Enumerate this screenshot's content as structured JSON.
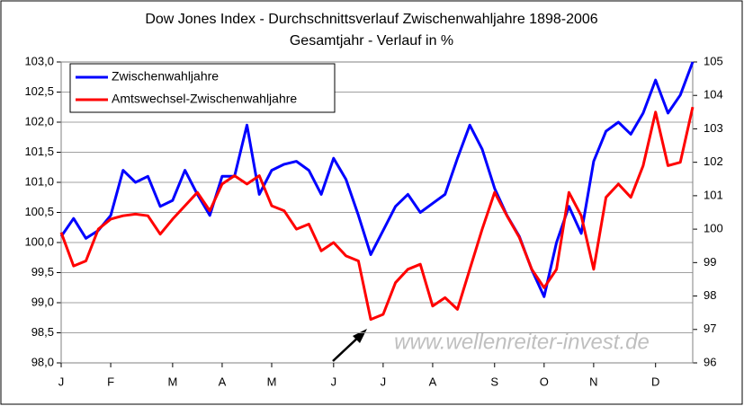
{
  "chart_data": {
    "type": "line",
    "title": "Dow Jones Index - Durchschnittsverlauf Zwischenwahljahre 1898-2006",
    "subtitle": "Gesamtjahr - Verlauf in %",
    "annotation": "www.wellenreiter-invest.de",
    "categories": [
      "J",
      null,
      null,
      null,
      "F",
      null,
      null,
      null,
      null,
      "M",
      null,
      null,
      null,
      "A",
      null,
      null,
      null,
      "M",
      null,
      null,
      null,
      null,
      "J",
      null,
      null,
      null,
      "J",
      null,
      null,
      null,
      "A",
      null,
      null,
      null,
      null,
      "S",
      null,
      null,
      null,
      "O",
      null,
      null,
      null,
      "N",
      null,
      null,
      null,
      null,
      "D",
      null,
      null,
      null
    ],
    "series": [
      {
        "name": "Zwischenwahljahre",
        "color": "#0000ff",
        "values": [
          100.1,
          100.4,
          100.07,
          100.2,
          100.45,
          101.2,
          101.0,
          101.1,
          100.6,
          100.7,
          101.2,
          100.8,
          100.45,
          101.1,
          101.1,
          101.95,
          100.8,
          101.2,
          101.3,
          101.35,
          101.2,
          100.8,
          101.4,
          101.05,
          100.45,
          99.8,
          100.2,
          100.6,
          100.8,
          100.5,
          100.65,
          100.8,
          101.4,
          101.95,
          101.55,
          100.9,
          100.45,
          100.1,
          99.55,
          99.1,
          100.0,
          100.6,
          100.15,
          101.35,
          101.85,
          102.0,
          101.8,
          102.15,
          102.7,
          102.15,
          102.45,
          103.0
        ]
      },
      {
        "name": "Amtswechsel-Zwischenwahljahre",
        "color": "#ff0000",
        "axis": "y2",
        "values": [
          99.9,
          98.9,
          99.05,
          100.0,
          100.3,
          100.4,
          100.45,
          100.4,
          99.85,
          100.3,
          100.7,
          101.1,
          100.55,
          101.35,
          101.6,
          101.35,
          101.6,
          100.7,
          100.55,
          100.0,
          100.15,
          99.35,
          99.6,
          99.2,
          99.05,
          97.3,
          97.45,
          98.4,
          98.8,
          98.95,
          97.7,
          97.95,
          97.6,
          98.8,
          100.0,
          101.1,
          100.4,
          99.75,
          98.8,
          98.25,
          98.8,
          101.1,
          100.4,
          98.8,
          100.95,
          101.35,
          100.95,
          101.9,
          103.5,
          101.9,
          102.0,
          103.65
        ]
      }
    ],
    "ylim": [
      98,
      103
    ],
    "yticks": [
      {
        "value": 98,
        "label": "98,0"
      },
      {
        "value": 98.5,
        "label": "98,5"
      },
      {
        "value": 99,
        "label": "99,0"
      },
      {
        "value": 99.5,
        "label": "99,5"
      },
      {
        "value": 100,
        "label": "100,0"
      },
      {
        "value": 100.5,
        "label": "100,5"
      },
      {
        "value": 101,
        "label": "101,0"
      },
      {
        "value": 101.5,
        "label": "101,5"
      },
      {
        "value": 102,
        "label": "102,0"
      },
      {
        "value": 102.5,
        "label": "102,5"
      },
      {
        "value": 103,
        "label": "103,0"
      }
    ],
    "y2lim": [
      96,
      105
    ],
    "y2ticks": [
      96,
      97,
      98,
      99,
      100,
      101,
      102,
      103,
      104,
      105
    ],
    "grid": true,
    "legend": "upper-left"
  }
}
